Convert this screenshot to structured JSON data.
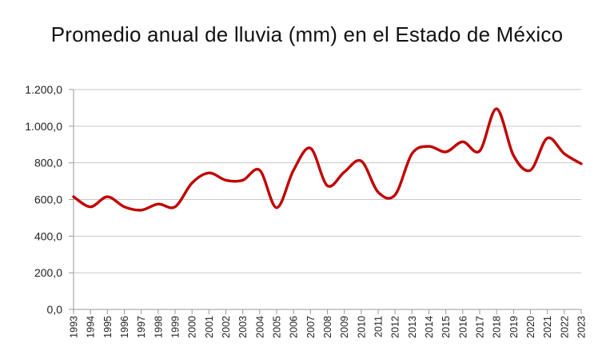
{
  "chart_data": {
    "type": "line",
    "title": "Promedio anual de lluvia (mm) en el Estado de México",
    "xlabel": "",
    "ylabel": "",
    "ylim": [
      0,
      1200
    ],
    "yticks": [
      "0,0",
      "200,0",
      "400,0",
      "600,0",
      "800,0",
      "1.000,0",
      "1.200,0"
    ],
    "ytick_values": [
      0,
      200,
      400,
      600,
      800,
      1000,
      1200
    ],
    "grid": true,
    "legend": "none",
    "line_color": "#c00000",
    "x": [
      "1993",
      "1994",
      "1995",
      "1996",
      "1997",
      "1998",
      "1999",
      "2000",
      "2001",
      "2002",
      "2003",
      "2004",
      "2005",
      "2006",
      "2007",
      "2008",
      "2009",
      "2010",
      "2011",
      "2012",
      "2013",
      "2014",
      "2015",
      "2016",
      "2017",
      "2018",
      "2019",
      "2020",
      "2021",
      "2022",
      "2023"
    ],
    "series": [
      {
        "values": [
          615,
          560,
          615,
          560,
          542,
          575,
          560,
          690,
          745,
          705,
          705,
          760,
          555,
          760,
          880,
          675,
          750,
          810,
          640,
          625,
          850,
          890,
          860,
          915,
          865,
          1095,
          840,
          760,
          935,
          850,
          795
        ]
      }
    ]
  }
}
